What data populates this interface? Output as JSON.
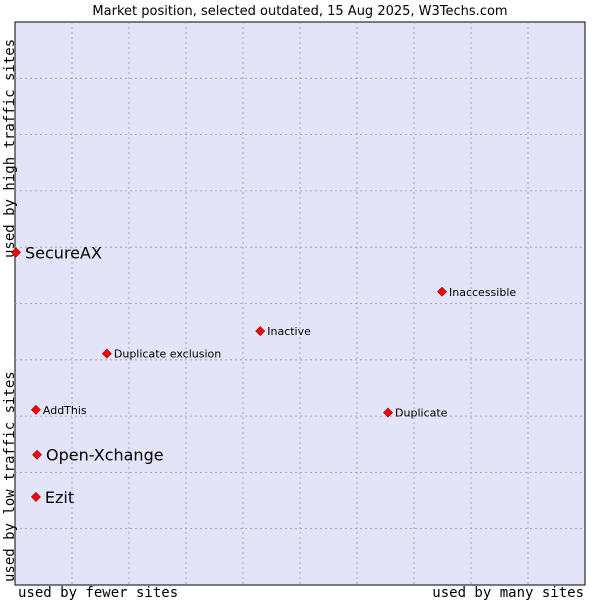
{
  "chart_data": {
    "type": "scatter",
    "title": "Market position, selected outdated, 15 Aug 2025, W3Techs.com",
    "xlabel_left": "used by fewer sites",
    "xlabel_right": "used by many sites",
    "ylabel_bottom": "used by low traffic sites",
    "ylabel_top": "used by high traffic sites",
    "xlim": [
      0,
      100
    ],
    "ylim": [
      0,
      100
    ],
    "grid": true,
    "point_color": "#ff0000",
    "plot_background": "#e4e4f8",
    "points": [
      {
        "label": "SecureAX",
        "x": 0,
        "y": 59,
        "emphasis": true
      },
      {
        "label": "Inaccessible",
        "x": 75,
        "y": 52,
        "emphasis": false
      },
      {
        "label": "Inactive",
        "x": 43,
        "y": 45,
        "emphasis": false
      },
      {
        "label": "Duplicate exclusion",
        "x": 16,
        "y": 41,
        "emphasis": false
      },
      {
        "label": "AddThis",
        "x": 3.5,
        "y": 31,
        "emphasis": false
      },
      {
        "label": "Duplicate",
        "x": 65.5,
        "y": 30.5,
        "emphasis": false
      },
      {
        "label": "Open-Xchange",
        "x": 3.7,
        "y": 23,
        "emphasis": true
      },
      {
        "label": "Ezit",
        "x": 3.5,
        "y": 15.5,
        "emphasis": true
      }
    ]
  }
}
